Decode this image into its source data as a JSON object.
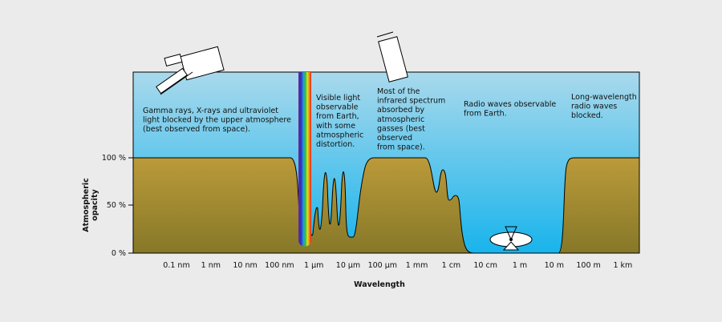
{
  "y_axis": {
    "label": [
      "Atmospheric",
      "opacity"
    ],
    "ticks": [
      "100 %",
      "50 %",
      "0 %"
    ]
  },
  "x_axis": {
    "label": "Wavelength",
    "ticks": [
      "0.1 nm",
      "1 nm",
      "10 nm",
      "100 nm",
      "1 µm",
      "10 µm",
      "100 µm",
      "1 mm",
      "1 cm",
      "10 cm",
      "1 m",
      "10 m",
      "100 m",
      "1 km"
    ]
  },
  "annotations": [
    {
      "lines": [
        "Gamma rays, X-rays and ultraviolet",
        "light blocked by the upper atmosphere",
        "(best observed from space)."
      ]
    },
    {
      "lines": [
        "Visible light",
        "observable",
        "from Earth,",
        "with some",
        "atmospheric",
        "distortion."
      ]
    },
    {
      "lines": [
        "Most of the",
        "infrared spectrum",
        "absorbed by",
        "atmospheric",
        "gasses (best",
        "observed",
        "from space)."
      ]
    },
    {
      "lines": [
        "Radio waves observable",
        "from Earth."
      ]
    },
    {
      "lines": [
        "Long-wavelength",
        "radio waves",
        "blocked."
      ]
    }
  ]
}
